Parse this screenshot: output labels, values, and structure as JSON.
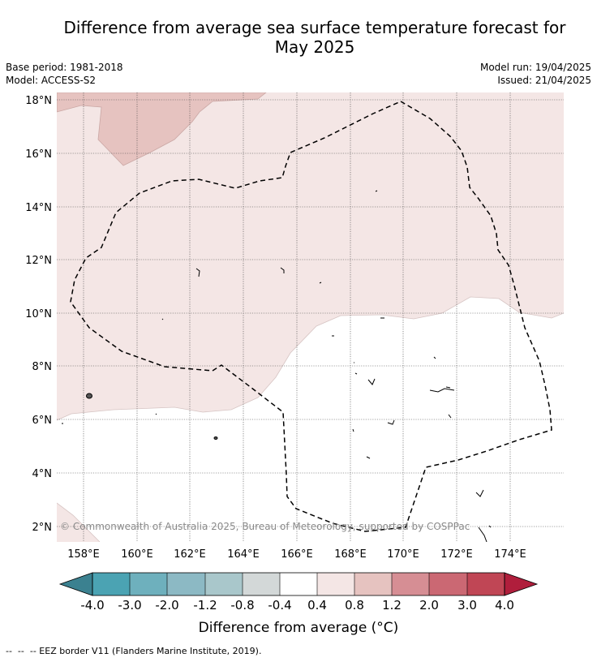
{
  "header": {
    "title_line1": "Difference from average sea surface temperature forecast for",
    "title_line2": "May 2025",
    "base_period": "Base period: 1981-2018",
    "model": "Model: ACCESS-S2",
    "model_run": "Model run: 19/04/2025",
    "issued": "Issued: 21/04/2025"
  },
  "map": {
    "lat_labels": [
      "18°N",
      "16°N",
      "14°N",
      "12°N",
      "10°N",
      "8°N",
      "6°N",
      "4°N",
      "2°N"
    ],
    "lon_labels": [
      "158°E",
      "160°E",
      "162°E",
      "164°E",
      "166°E",
      "168°E",
      "170°E",
      "172°E",
      "174°E"
    ],
    "copyright": "© Commonwealth of Australia 2025, Bureau of Meteorology, supported by COSPPac",
    "colors": {
      "c_0p4_0p8": "#f4e6e5",
      "c_0p8_1p2": "#e6c3c0",
      "c_neutral": "#ffffff"
    }
  },
  "colorbar": {
    "tick_labels": [
      "-4.0",
      "-3.0",
      "-2.0",
      "-1.2",
      "-0.8",
      "-0.4",
      "0.4",
      "0.8",
      "1.2",
      "2.0",
      "3.0",
      "4.0"
    ],
    "colors": [
      "#3b8190",
      "#4ba3b3",
      "#6eb0bd",
      "#8cb9c4",
      "#a9c7cb",
      "#d3d8d8",
      "#ffffff",
      "#f4e6e5",
      "#e6c3c0",
      "#d68e94",
      "#cb6873",
      "#c04655",
      "#b01e3c"
    ],
    "label": "Difference from average (°C)"
  },
  "footnote": "--  --  -- EEZ border V11 (Flanders Marine Institute, 2019)."
}
